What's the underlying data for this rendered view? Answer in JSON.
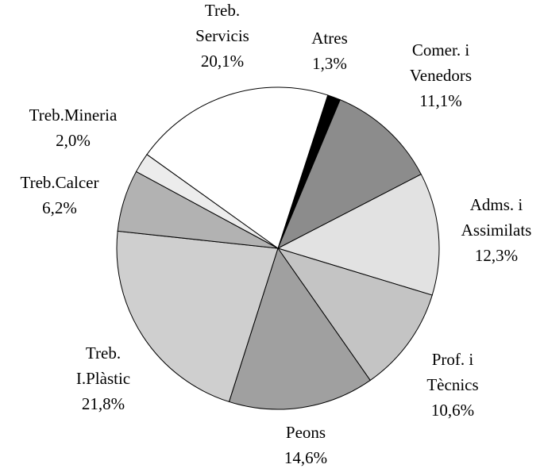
{
  "chart_data": {
    "type": "pie",
    "categories": [
      [
        "Atres"
      ],
      [
        "Comer. i",
        "Venedors"
      ],
      [
        "Adms. i",
        "Assimilats"
      ],
      [
        "Prof. i",
        "Tècnics"
      ],
      [
        "Peons"
      ],
      [
        "Treb.",
        "I.Plàstic"
      ],
      [
        "Treb.Calcer"
      ],
      [
        "Treb.Mineria"
      ],
      [
        "Treb.",
        "Servicis"
      ]
    ],
    "values": [
      1.3,
      11.1,
      12.3,
      10.6,
      14.6,
      21.8,
      6.2,
      2.0,
      20.1
    ],
    "value_labels": [
      "1,3%",
      "11,1%",
      "12,3%",
      "10,6%",
      "14,6%",
      "21,8%",
      "6,2%",
      "2,0%",
      "20,1%"
    ],
    "colors": [
      "#000000",
      "#8c8c8c",
      "#e2e2e2",
      "#c4c4c4",
      "#a0a0a0",
      "#cfcfcf",
      "#b2b2b2",
      "#ececec",
      "#ffffff"
    ]
  }
}
